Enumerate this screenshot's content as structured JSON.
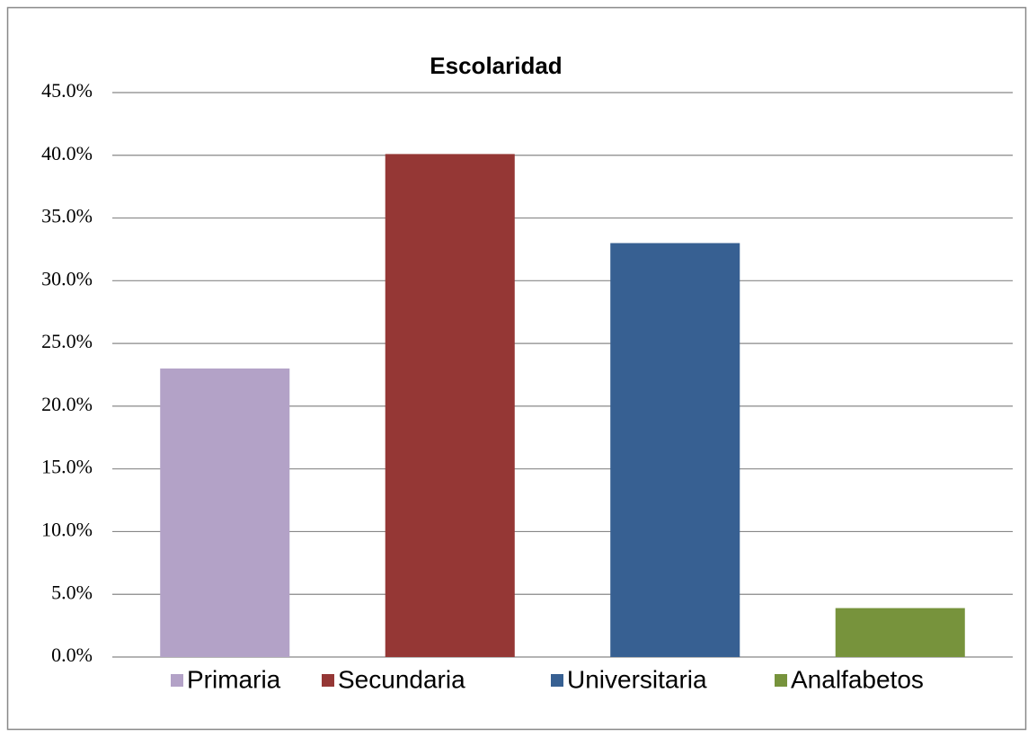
{
  "chart_data": {
    "type": "bar",
    "title": "Escolaridad",
    "categories": [
      "Primaria",
      "Secundaria",
      "Universitaria",
      "Analfabetos"
    ],
    "values": [
      23.0,
      40.1,
      33.0,
      3.9
    ],
    "colors": [
      "#b3a2c7",
      "#953735",
      "#376092",
      "#77933c"
    ],
    "ylim": [
      0,
      45
    ],
    "yticks": [
      {
        "value": 0,
        "label": "0.0%"
      },
      {
        "value": 5,
        "label": "5.0%"
      },
      {
        "value": 10,
        "label": "10.0%"
      },
      {
        "value": 15,
        "label": "15.0%"
      },
      {
        "value": 20,
        "label": "20.0%"
      },
      {
        "value": 25,
        "label": "25.0%"
      },
      {
        "value": 30,
        "label": "30.0%"
      },
      {
        "value": 35,
        "label": "35.0%"
      },
      {
        "value": 40,
        "label": "40.0%"
      },
      {
        "value": 45,
        "label": "45.0%"
      }
    ],
    "grid": true,
    "legend": "bottom"
  }
}
